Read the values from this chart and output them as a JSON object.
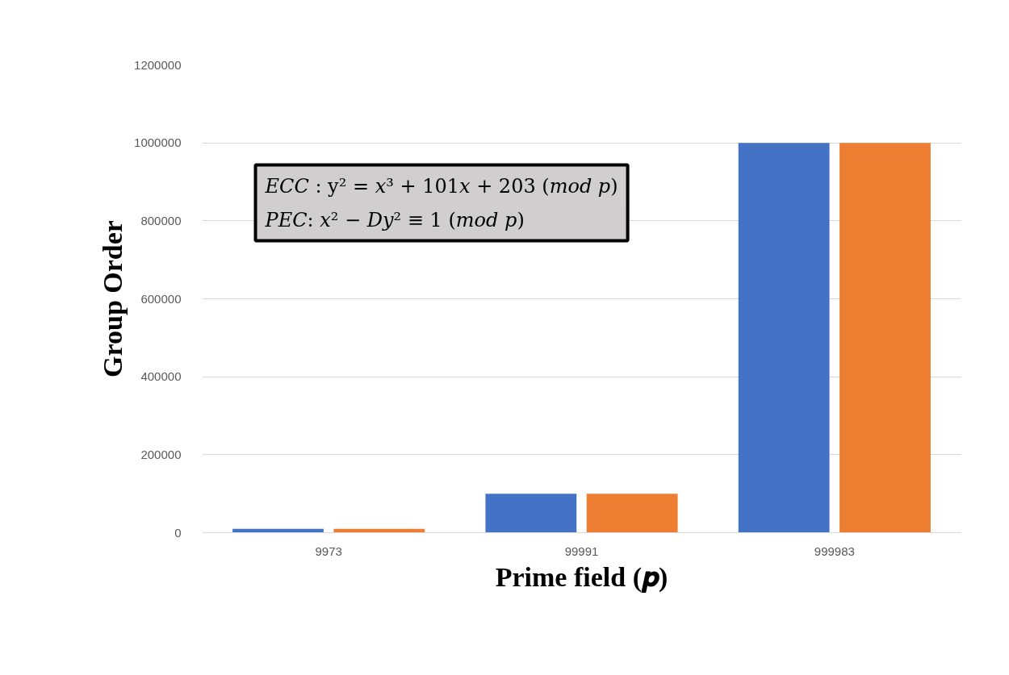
{
  "chart_data": {
    "type": "bar",
    "xlabel": "Prime field (𝒑)",
    "ylabel": "Group Order",
    "categories": [
      "9973",
      "99991",
      "999983"
    ],
    "series": [
      {
        "color": "#4472c4",
        "values": [
          10000,
          100000,
          1000000
        ]
      },
      {
        "color": "#ed7d31",
        "values": [
          10000,
          100000,
          1000000
        ]
      }
    ],
    "ylim": [
      0,
      1200000
    ],
    "yticks": [
      0,
      200000,
      400000,
      600000,
      800000,
      1000000,
      1200000
    ],
    "grid": "y",
    "annotations": [
      "𝐸𝐶𝐶 : y² = 𝑥³ + 101𝑥 + 203 (𝑚𝑜𝑑 𝑝)",
      "𝑃𝐸𝐶: 𝑥² − 𝐷𝑦² ≡ 1 (𝑚𝑜𝑑 𝑝)"
    ]
  }
}
